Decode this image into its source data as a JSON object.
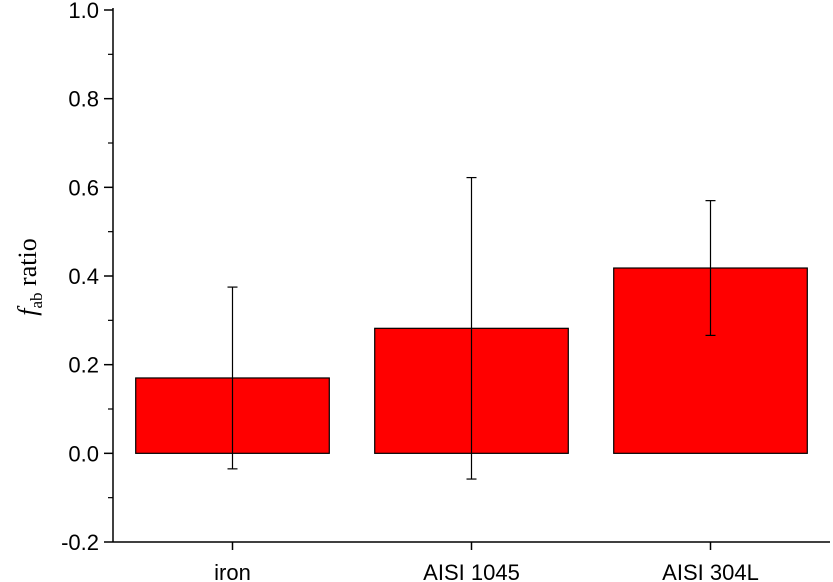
{
  "chart_data": {
    "type": "bar",
    "categories": [
      "iron",
      "AISI 1045",
      "AISI 304L"
    ],
    "values": [
      0.17,
      0.282,
      0.418
    ],
    "errors": [
      0.205,
      0.34,
      0.152
    ],
    "ylabel_symbol": "f",
    "ylabel_subscript": "ab",
    "ylabel_text": " ratio",
    "ylim": [
      -0.2,
      1.0
    ],
    "yticks": [
      -0.2,
      0.0,
      0.2,
      0.4,
      0.6,
      0.8,
      1.0
    ],
    "ytick_labels": [
      "-0.2",
      "0.0",
      "0.2",
      "0.4",
      "0.6",
      "0.8",
      "1.0"
    ],
    "bar_color": "#ff0000",
    "grid": false,
    "legend": "none"
  }
}
